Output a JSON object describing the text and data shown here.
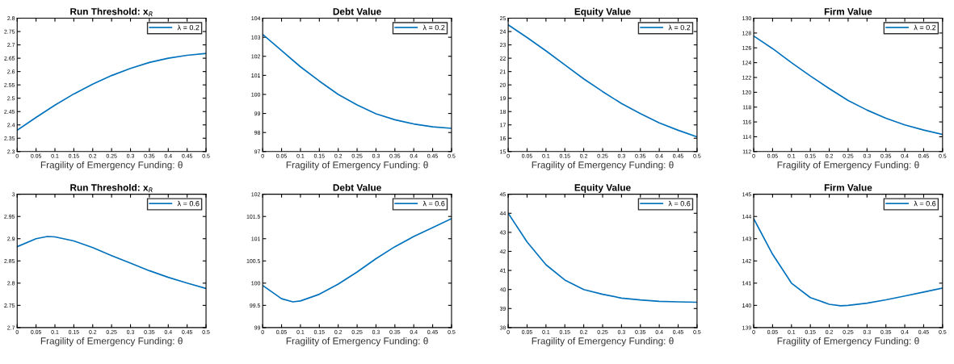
{
  "chart_data": [
    {
      "type": "line",
      "title": "Run Threshold: x$_{R}$",
      "xlabel": "Fragility of Emergency Funding: θ",
      "x": [
        0,
        0.05,
        0.1,
        0.15,
        0.2,
        0.25,
        0.3,
        0.35,
        0.4,
        0.45,
        0.5
      ],
      "series": [
        {
          "name": "λ = 0.2",
          "color": "#0072bd",
          "values": [
            2.38,
            2.428,
            2.474,
            2.516,
            2.553,
            2.585,
            2.612,
            2.634,
            2.65,
            2.661,
            2.668
          ]
        }
      ],
      "xlim": [
        0,
        0.5
      ],
      "xticks": [
        0,
        0.05,
        0.1,
        0.15,
        0.2,
        0.25,
        0.3,
        0.35,
        0.4,
        0.45,
        0.5
      ],
      "ylim": [
        2.3,
        2.8
      ],
      "yticks": [
        2.3,
        2.35,
        2.4,
        2.45,
        2.5,
        2.55,
        2.6,
        2.65,
        2.7,
        2.75,
        2.8
      ],
      "legend": "top right"
    },
    {
      "type": "line",
      "title": "Debt Value",
      "xlabel": "Fragility of Emergency Funding: θ",
      "x": [
        0,
        0.05,
        0.1,
        0.15,
        0.2,
        0.25,
        0.3,
        0.35,
        0.4,
        0.45,
        0.5
      ],
      "series": [
        {
          "name": "λ = 0.2",
          "color": "#0072bd",
          "values": [
            103.15,
            102.3,
            101.45,
            100.7,
            100.0,
            99.45,
            98.98,
            98.67,
            98.45,
            98.3,
            98.22
          ]
        }
      ],
      "xlim": [
        0,
        0.5
      ],
      "xticks": [
        0,
        0.05,
        0.1,
        0.15,
        0.2,
        0.25,
        0.3,
        0.35,
        0.4,
        0.45,
        0.5
      ],
      "ylim": [
        97,
        104
      ],
      "yticks": [
        97,
        98,
        99,
        100,
        101,
        102,
        103,
        104
      ],
      "legend": "top right"
    },
    {
      "type": "line",
      "title": "Equity Value",
      "xlabel": "Fragility of Emergency Funding: θ",
      "x": [
        0,
        0.05,
        0.1,
        0.15,
        0.2,
        0.25,
        0.3,
        0.35,
        0.4,
        0.45,
        0.5
      ],
      "series": [
        {
          "name": "λ = 0.2",
          "color": "#0072bd",
          "values": [
            24.5,
            23.55,
            22.55,
            21.5,
            20.45,
            19.5,
            18.6,
            17.85,
            17.15,
            16.6,
            16.1
          ]
        }
      ],
      "xlim": [
        0,
        0.5
      ],
      "xticks": [
        0,
        0.05,
        0.1,
        0.15,
        0.2,
        0.25,
        0.3,
        0.35,
        0.4,
        0.45,
        0.5
      ],
      "ylim": [
        15,
        25
      ],
      "yticks": [
        15,
        16,
        17,
        18,
        19,
        20,
        21,
        22,
        23,
        24,
        25
      ],
      "legend": "top right"
    },
    {
      "type": "line",
      "title": "Firm Value",
      "xlabel": "Fragility of Emergency Funding: θ",
      "x": [
        0,
        0.05,
        0.1,
        0.15,
        0.2,
        0.25,
        0.3,
        0.35,
        0.4,
        0.45,
        0.5
      ],
      "series": [
        {
          "name": "λ = 0.2",
          "color": "#0072bd",
          "values": [
            127.6,
            125.9,
            124.0,
            122.2,
            120.5,
            118.9,
            117.6,
            116.5,
            115.6,
            114.9,
            114.3
          ]
        }
      ],
      "xlim": [
        0,
        0.5
      ],
      "xticks": [
        0,
        0.05,
        0.1,
        0.15,
        0.2,
        0.25,
        0.3,
        0.35,
        0.4,
        0.45,
        0.5
      ],
      "ylim": [
        112,
        130
      ],
      "yticks": [
        112,
        114,
        116,
        118,
        120,
        122,
        124,
        126,
        128,
        130
      ],
      "legend": "top right"
    },
    {
      "type": "line",
      "title": "Run Threshold: x$_{R}$",
      "xlabel": "Fragility of Emergency Funding: θ",
      "x": [
        0,
        0.05,
        0.08,
        0.1,
        0.15,
        0.2,
        0.25,
        0.3,
        0.35,
        0.4,
        0.45,
        0.5
      ],
      "series": [
        {
          "name": "λ = 0.6",
          "color": "#0072bd",
          "values": [
            2.882,
            2.9,
            2.905,
            2.904,
            2.895,
            2.88,
            2.862,
            2.845,
            2.828,
            2.813,
            2.8,
            2.788
          ]
        }
      ],
      "xlim": [
        0,
        0.5
      ],
      "xticks": [
        0,
        0.05,
        0.1,
        0.15,
        0.2,
        0.25,
        0.3,
        0.35,
        0.4,
        0.45,
        0.5
      ],
      "ylim": [
        2.7,
        3
      ],
      "yticks": [
        2.7,
        2.75,
        2.8,
        2.85,
        2.9,
        2.95,
        3
      ],
      "legend": "top right"
    },
    {
      "type": "line",
      "title": "Debt Value",
      "xlabel": "Fragility of Emergency Funding: θ",
      "x": [
        0,
        0.05,
        0.08,
        0.1,
        0.15,
        0.2,
        0.25,
        0.3,
        0.35,
        0.4,
        0.45,
        0.5
      ],
      "series": [
        {
          "name": "λ = 0.6",
          "color": "#0072bd",
          "values": [
            99.95,
            99.65,
            99.58,
            99.6,
            99.75,
            99.98,
            100.25,
            100.55,
            100.82,
            101.05,
            101.25,
            101.45
          ]
        }
      ],
      "xlim": [
        0,
        0.5
      ],
      "xticks": [
        0,
        0.05,
        0.1,
        0.15,
        0.2,
        0.25,
        0.3,
        0.35,
        0.4,
        0.45,
        0.5
      ],
      "ylim": [
        99,
        102
      ],
      "yticks": [
        99,
        99.5,
        100,
        100.5,
        101,
        101.5,
        102
      ],
      "legend": "top right"
    },
    {
      "type": "line",
      "title": "Equity Value",
      "xlabel": "Fragility of Emergency Funding: θ",
      "x": [
        0,
        0.05,
        0.1,
        0.15,
        0.2,
        0.25,
        0.3,
        0.35,
        0.4,
        0.45,
        0.5
      ],
      "series": [
        {
          "name": "λ = 0.6",
          "color": "#0072bd",
          "values": [
            44.0,
            42.5,
            41.3,
            40.5,
            40.0,
            39.75,
            39.55,
            39.45,
            39.38,
            39.35,
            39.33
          ]
        }
      ],
      "xlim": [
        0,
        0.5
      ],
      "xticks": [
        0,
        0.05,
        0.1,
        0.15,
        0.2,
        0.25,
        0.3,
        0.35,
        0.4,
        0.45,
        0.5
      ],
      "ylim": [
        38,
        45
      ],
      "yticks": [
        38,
        39,
        40,
        41,
        42,
        43,
        44,
        45
      ],
      "legend": "top right"
    },
    {
      "type": "line",
      "title": "Firm Value",
      "xlabel": "Fragility of Emergency Funding: θ",
      "x": [
        0,
        0.05,
        0.1,
        0.15,
        0.2,
        0.23,
        0.25,
        0.3,
        0.35,
        0.4,
        0.45,
        0.5
      ],
      "series": [
        {
          "name": "λ = 0.6",
          "color": "#0072bd",
          "values": [
            143.9,
            142.3,
            141.0,
            140.35,
            140.05,
            139.98,
            140.0,
            140.1,
            140.25,
            140.42,
            140.6,
            140.78
          ]
        }
      ],
      "xlim": [
        0,
        0.5
      ],
      "xticks": [
        0,
        0.05,
        0.1,
        0.15,
        0.2,
        0.25,
        0.3,
        0.35,
        0.4,
        0.45,
        0.5
      ],
      "ylim": [
        139,
        145
      ],
      "yticks": [
        139,
        140,
        141,
        142,
        143,
        144,
        145
      ],
      "legend": "top right"
    }
  ]
}
